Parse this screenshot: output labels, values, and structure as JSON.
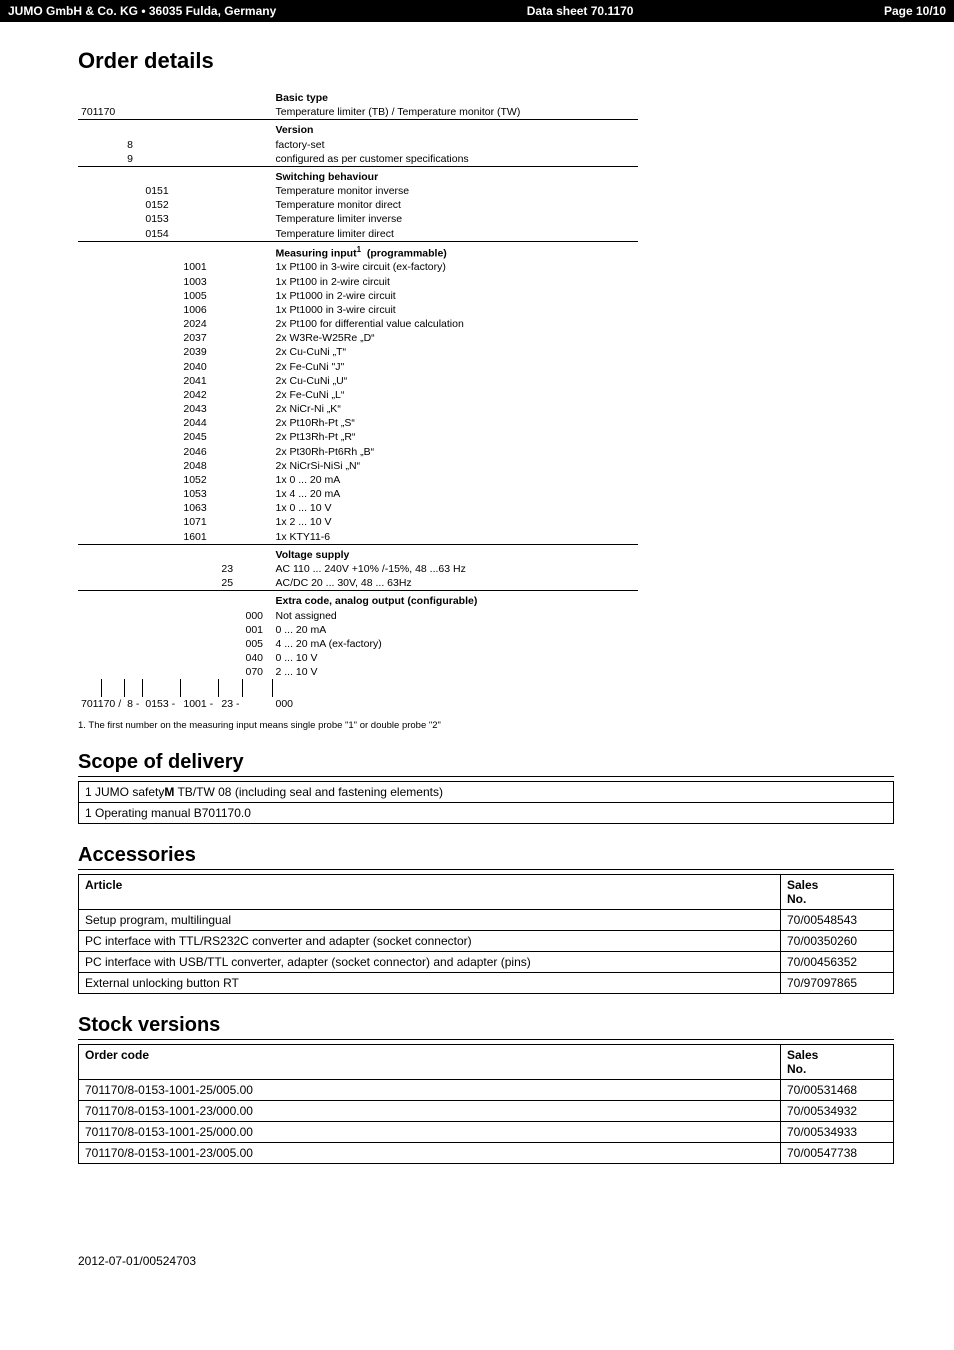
{
  "header": {
    "left": "JUMO GmbH & Co. KG • 36035 Fulda, Germany",
    "mid": "Data sheet 70.1170",
    "right": "Page 10/10"
  },
  "order": {
    "title": "Order details",
    "basic_type": {
      "label": "Basic type",
      "code": "701170",
      "text": "Temperature limiter (TB) / Temperature monitor (TW)"
    },
    "version": {
      "label": "Version",
      "rows": [
        {
          "code": "8",
          "text": "factory-set"
        },
        {
          "code": "9",
          "text": "configured as per customer specifications"
        }
      ]
    },
    "switching": {
      "label": "Switching behaviour",
      "rows": [
        {
          "code": "0151",
          "text": "Temperature monitor inverse"
        },
        {
          "code": "0152",
          "text": "Temperature monitor direct"
        },
        {
          "code": "0153",
          "text": "Temperature limiter inverse"
        },
        {
          "code": "0154",
          "text": "Temperature limiter direct"
        }
      ]
    },
    "measuring": {
      "label": "Measuring input¹  (programmable)",
      "rows": [
        {
          "code": "1001",
          "text": "1x Pt100 in 3-wire circuit (ex-factory)"
        },
        {
          "code": "1003",
          "text": "1x Pt100 in 2-wire circuit"
        },
        {
          "code": "1005",
          "text": "1x Pt1000 in 2-wire circuit"
        },
        {
          "code": "1006",
          "text": "1x Pt1000  in 3-wire circuit"
        },
        {
          "code": "2024",
          "text": "2x Pt100 for differential value calculation"
        },
        {
          "code": "2037",
          "text": "2x W3Re-W25Re „D“"
        },
        {
          "code": "2039",
          "text": "2x Cu-CuNi „T“"
        },
        {
          "code": "2040",
          "text": "2x Fe-CuNi \"J\""
        },
        {
          "code": "2041",
          "text": "2x Cu-CuNi  „U“"
        },
        {
          "code": "2042",
          "text": "2x Fe-CuNi  „L“"
        },
        {
          "code": "2043",
          "text": "2x NiCr-Ni „K“"
        },
        {
          "code": "2044",
          "text": "2x Pt10Rh-Pt „S“"
        },
        {
          "code": "2045",
          "text": "2x Pt13Rh-Pt „R“"
        },
        {
          "code": "2046",
          "text": "2x Pt30Rh-Pt6Rh „B“"
        },
        {
          "code": "2048",
          "text": "2x NiCrSi-NiSi „N“"
        },
        {
          "code": "1052",
          "text": "1x 0 ... 20 mA"
        },
        {
          "code": "1053",
          "text": "1x 4 ... 20 mA"
        },
        {
          "code": "1063",
          "text": "1x 0 ... 10 V"
        },
        {
          "code": "1071",
          "text": "1x 2 ... 10 V"
        },
        {
          "code": "1601",
          "text": "1x KTY11-6"
        }
      ]
    },
    "voltage": {
      "label": "Voltage supply",
      "rows": [
        {
          "code": "23",
          "text": "AC 110 ... 240V +10% /-15%, 48 ...63 Hz"
        },
        {
          "code": "25",
          "text": "AC/DC 20 ... 30V, 48 ... 63Hz"
        }
      ]
    },
    "extra": {
      "label": "Extra code, analog output (configurable)",
      "rows": [
        {
          "code": "000",
          "text": "Not assigned"
        },
        {
          "code": "001",
          "text": "0 ... 20 mA"
        },
        {
          "code": "005",
          "text": "4 ... 20 mA (ex-factory)"
        },
        {
          "code": "040",
          "text": "0 ... 10 V"
        },
        {
          "code": "070",
          "text": "2 ... 10 V"
        }
      ]
    },
    "example_line": {
      "p1": "701170",
      "sep1": "/",
      "p2": "8",
      "sep2": "-",
      "p3": "0153",
      "sep3": "-",
      "p4": "1001",
      "sep4": "-",
      "p5": "23",
      "sep5": "-",
      "p6": "000"
    },
    "footnote": "1. The first number on the measuring input means single probe \"1\" or double probe \"2\""
  },
  "scope": {
    "title": "Scope of delivery",
    "rows": [
      {
        "text_pre": "1 JUMO safety",
        "bold": "M",
        "text_post": " TB/TW 08 (including seal and fastening elements)"
      },
      {
        "text_pre": "1 Operating manual B701170.0",
        "bold": "",
        "text_post": ""
      }
    ]
  },
  "accessories": {
    "title": "Accessories",
    "header_article": "Article",
    "header_sales": "Sales\nNo.",
    "rows": [
      {
        "article": "Setup program, multilingual",
        "no": "70/00548543"
      },
      {
        "article": "PC interface with TTL/RS232C converter and adapter (socket connector)",
        "no": "70/00350260"
      },
      {
        "article": "PC interface with USB/TTL converter, adapter (socket connector) and adapter (pins)",
        "no": "70/00456352"
      },
      {
        "article": "External unlocking button RT",
        "no": "70/97097865"
      }
    ]
  },
  "stock": {
    "title": "Stock versions",
    "header_code": "Order code",
    "header_sales": "Sales\nNo.",
    "rows": [
      {
        "code": "701170/8-0153-1001-25/005.00",
        "no": "70/00531468"
      },
      {
        "code": "701170/8-0153-1001-23/000.00",
        "no": "70/00534932"
      },
      {
        "code": "701170/8-0153-1001-25/000.00",
        "no": "70/00534933"
      },
      {
        "code": "701170/8-0153-1001-23/005.00",
        "no": "70/00547738"
      }
    ]
  },
  "footer": "2012-07-01/00524703"
}
